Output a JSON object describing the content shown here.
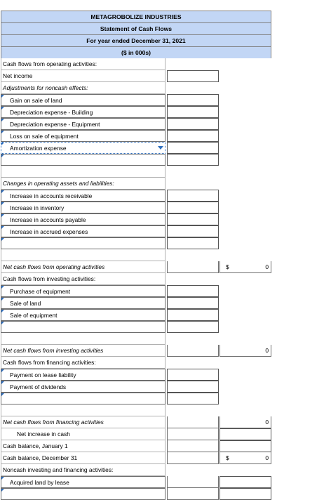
{
  "header": {
    "company": "METAGROBOLIZE INDUSTRIES",
    "statement": "Statement of Cash Flows",
    "period": "For year ended December 31, 2021",
    "units": "($ in 000s)"
  },
  "operating": {
    "title": "Cash flows from operating activities:",
    "net_income": "Net income",
    "adjustments": "Adjustments for noncash effects:",
    "adj_items": [
      "Gain on sale of land",
      "Depreciation expense - Building",
      "Depreciation expense - Equipment",
      "Loss on sale of equipment",
      "Amortization expense"
    ],
    "changes": "Changes in operating assets and liabilities:",
    "change_items": [
      "Increase in accounts receivable",
      "Increase in inventory",
      "Increase in accounts payable",
      "Increase in accrued expenses"
    ],
    "net_label": "Net cash flows from operating activities",
    "net_currency": "$",
    "net_value": "0"
  },
  "investing": {
    "title": "Cash flows from investing activities:",
    "items": [
      "Purchase of equipment",
      "Sale of land",
      "Sale of equipment"
    ],
    "net_label": "Net cash flows from investing activities",
    "net_value": "0"
  },
  "financing": {
    "title": "Cash flows from financing activities:",
    "items": [
      "Payment on lease liability",
      "Payment of dividends"
    ],
    "net_label": "Net cash flows from financing activities",
    "net_value": "0"
  },
  "summary": {
    "net_increase": "Net increase in cash",
    "jan1": "Cash balance, January 1",
    "dec31": "Cash balance, December 31",
    "dec31_currency": "$",
    "dec31_value": "0"
  },
  "noncash": {
    "title": "Noncash investing and financing activities:",
    "items": [
      "Acquired land by lease"
    ]
  }
}
